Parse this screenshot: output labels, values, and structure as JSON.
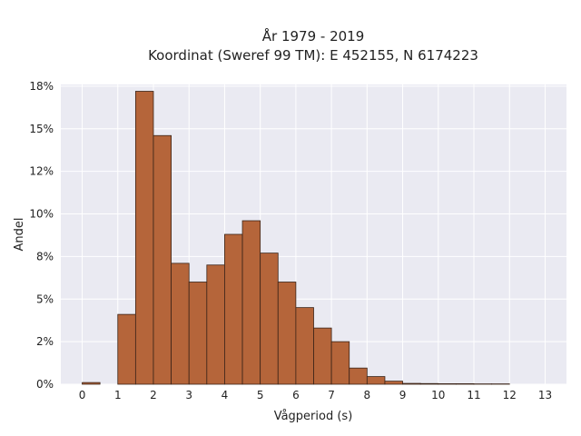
{
  "chart_data": {
    "type": "bar",
    "title_lines": [
      "År 1979 - 2019",
      "Koordinat (Sweref 99 TM): E 452155, N 6174223"
    ],
    "xlabel": "Vågperiod (s)",
    "ylabel": "Andel",
    "bin_width": 0.5,
    "x_bin_starts": [
      0,
      0.5,
      1,
      1.5,
      2,
      2.5,
      3,
      3.5,
      4,
      4.5,
      5,
      5.5,
      6,
      6.5,
      7,
      7.5,
      8,
      8.5,
      9,
      9.5,
      10,
      10.5,
      11,
      11.5
    ],
    "values": [
      0.1,
      0,
      4.1,
      17.2,
      14.6,
      7.1,
      6.0,
      7.0,
      8.8,
      9.6,
      7.7,
      6.0,
      4.5,
      3.3,
      2.5,
      0.95,
      0.45,
      0.18,
      0.05,
      0.04,
      0.03,
      0.03,
      0.02,
      0.02
    ],
    "xlim": [
      -0.6,
      13.6
    ],
    "ylim": [
      0,
      17.6
    ],
    "x_ticks": [
      0,
      1,
      2,
      3,
      4,
      5,
      6,
      7,
      8,
      9,
      10,
      11,
      12,
      13
    ],
    "x_tick_labels": [
      "0",
      "1",
      "2",
      "3",
      "4",
      "5",
      "6",
      "7",
      "8",
      "9",
      "10",
      "11",
      "12",
      "13"
    ],
    "y_ticks": [
      0,
      2.5,
      5,
      7.5,
      10,
      12.5,
      15,
      17.5
    ],
    "y_tick_labels": [
      "0%",
      "2%",
      "5%",
      "8%",
      "10%",
      "12%",
      "15%",
      "18%"
    ],
    "grid": true,
    "colors": {
      "bar_fill": "#b5653a",
      "bar_edge": "#3a2418",
      "plot_bg": "#eaeaf2",
      "grid": "#ffffff"
    }
  }
}
